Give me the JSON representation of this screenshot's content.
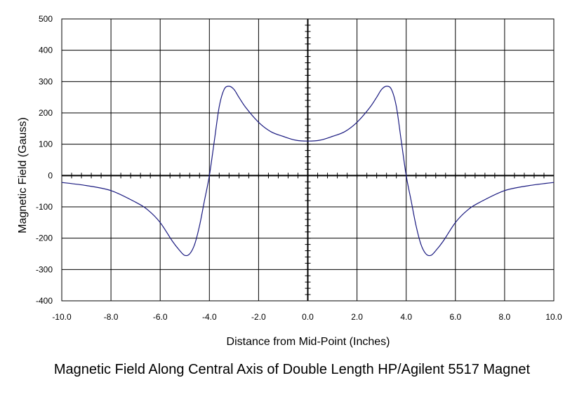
{
  "chart_data": {
    "type": "line",
    "title": "",
    "caption": "Magnetic Field Along Central Axis of Double Length HP/Agilent 5517 Magnet",
    "xlabel": "Distance from Mid-Point (Inches)",
    "ylabel": "Magnetic Field (Gauss)",
    "xlim": [
      -10,
      10
    ],
    "ylim": [
      -400,
      500
    ],
    "x_ticks": [
      -10,
      -8,
      -6,
      -4,
      -2,
      0,
      2,
      4,
      6,
      8,
      10
    ],
    "x_tick_labels": [
      "-10.0",
      "-8.0",
      "-6.0",
      "-4.0",
      "-2.0",
      "0.0",
      "2.0",
      "4.0",
      "6.0",
      "8.0",
      "10.0"
    ],
    "y_ticks": [
      -400,
      -300,
      -200,
      -100,
      0,
      100,
      200,
      300,
      400,
      500
    ],
    "y_tick_labels": [
      "-400",
      "-300",
      "-200",
      "-100",
      "0",
      "100",
      "200",
      "300",
      "400",
      "500"
    ],
    "grid": true,
    "line_color": "#1a1a80",
    "series": [
      {
        "x": [
          -10,
          -9,
          -8,
          -7,
          -6.5,
          -6,
          -5.5,
          -5.2,
          -5,
          -4.8,
          -4.6,
          -4.4,
          -4.2,
          -4,
          -3.8,
          -3.6,
          -3.4,
          -3.2,
          -3,
          -2.8,
          -2.5,
          -2,
          -1.5,
          -1,
          -0.5,
          0,
          0.5,
          1,
          1.5,
          2,
          2.5,
          2.8,
          3,
          3.2,
          3.4,
          3.6,
          3.8,
          4,
          4.2,
          4.4,
          4.6,
          4.8,
          5,
          5.2,
          5.5,
          6,
          6.5,
          7,
          8,
          9,
          10
        ],
        "y": [
          -22,
          -32,
          -48,
          -85,
          -110,
          -150,
          -210,
          -240,
          -255,
          -250,
          -220,
          -160,
          -80,
          0,
          110,
          220,
          275,
          285,
          275,
          250,
          215,
          170,
          140,
          125,
          113,
          110,
          113,
          125,
          140,
          170,
          215,
          250,
          275,
          285,
          275,
          220,
          110,
          0,
          -80,
          -160,
          -220,
          -250,
          -255,
          -240,
          -210,
          -150,
          -110,
          -85,
          -48,
          -32,
          -22
        ]
      }
    ]
  }
}
